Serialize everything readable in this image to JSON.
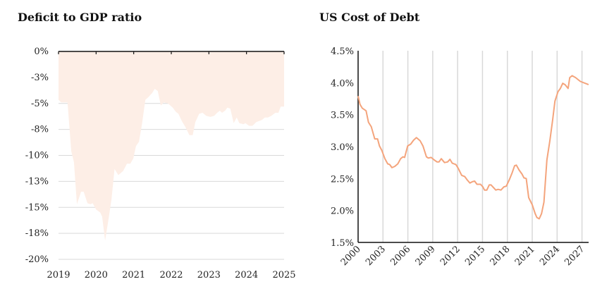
{
  "colors": {
    "area": "#fdeee6",
    "line": "#f4a47c",
    "grid": "#d9d9d9",
    "axis": "#111111"
  },
  "chart_data": [
    {
      "type": "area",
      "title": "Deficit to GDP ratio",
      "xlabel": "",
      "ylabel": "",
      "xlim": [
        2019,
        2025
      ],
      "ylim": [
        -20,
        0
      ],
      "grid": "horizontal",
      "x_ticks": [
        2019,
        2020,
        2021,
        2022,
        2023,
        2024,
        2025
      ],
      "x_tick_labels": [
        "2019",
        "2020",
        "2021",
        "2022",
        "2023",
        "2024",
        "2025"
      ],
      "y_ticks": [
        0,
        -2.5,
        -5,
        -7.5,
        -10,
        -12.5,
        -15,
        -17.5,
        -20
      ],
      "y_tick_labels": [
        "0%",
        "-3%",
        "-5%",
        "-8%",
        "-10%",
        "-13%",
        "-15%",
        "-18%",
        "-20%"
      ],
      "x": [
        2019.0,
        2019.07,
        2019.24,
        2019.34,
        2019.41,
        2019.49,
        2019.6,
        2019.67,
        2019.77,
        2019.85,
        2019.91,
        2020.0,
        2020.11,
        2020.16,
        2020.24,
        2020.34,
        2020.41,
        2020.49,
        2020.59,
        2020.72,
        2020.82,
        2020.91,
        2020.99,
        2021.06,
        2021.14,
        2021.22,
        2021.31,
        2021.39,
        2021.49,
        2021.56,
        2021.64,
        2021.72,
        2021.8,
        2021.91,
        2022.04,
        2022.12,
        2022.19,
        2022.28,
        2022.38,
        2022.48,
        2022.57,
        2022.64,
        2022.74,
        2022.83,
        2022.93,
        2023.04,
        2023.14,
        2023.22,
        2023.29,
        2023.35,
        2023.43,
        2023.49,
        2023.57,
        2023.66,
        2023.74,
        2023.81,
        2023.92,
        2023.97,
        2024.07,
        2024.16,
        2024.26,
        2024.41,
        2024.49,
        2024.57,
        2024.66,
        2024.77,
        2024.85,
        2024.91,
        2025.0
      ],
      "values": [
        -4.65,
        -4.9,
        -4.9,
        -9.6,
        -10.65,
        -14.7,
        -13.5,
        -13.5,
        -14.6,
        -14.7,
        -14.6,
        -15.2,
        -15.5,
        -15.9,
        -18.2,
        -15.9,
        -14.2,
        -11.3,
        -11.9,
        -11.5,
        -10.8,
        -10.8,
        -10.3,
        -9.1,
        -8.7,
        -7.0,
        -4.65,
        -4.4,
        -4.0,
        -3.6,
        -3.8,
        -5.2,
        -4.9,
        -5.0,
        -5.4,
        -5.8,
        -6.0,
        -6.7,
        -7.3,
        -8.05,
        -8.05,
        -6.8,
        -6.0,
        -5.9,
        -6.2,
        -6.3,
        -6.2,
        -5.9,
        -5.7,
        -5.9,
        -5.7,
        -5.4,
        -5.5,
        -6.9,
        -6.35,
        -6.9,
        -7.0,
        -6.9,
        -7.15,
        -7.15,
        -6.8,
        -6.6,
        -6.35,
        -6.35,
        -6.2,
        -5.9,
        -5.9,
        -5.3,
        -5.3
      ]
    },
    {
      "type": "line",
      "title": "US Cost of Debt",
      "xlabel": "",
      "ylabel": "",
      "xlim": [
        2000,
        2027.8
      ],
      "ylim": [
        1.5,
        4.5
      ],
      "grid": "vertical",
      "x_ticks": [
        2000,
        2003,
        2006,
        2009,
        2012,
        2015,
        2018,
        2021,
        2024,
        2027
      ],
      "x_tick_labels": [
        "2000",
        "2003",
        "2006",
        "2009",
        "2012",
        "2015",
        "2018",
        "2021",
        "2024",
        "2027"
      ],
      "y_ticks": [
        1.5,
        2.0,
        2.5,
        3.0,
        3.5,
        4.0,
        4.5
      ],
      "y_tick_labels": [
        "1.5%",
        "2.0%",
        "2.5%",
        "3.0%",
        "3.5%",
        "4.0%",
        "4.5%"
      ],
      "x": [
        2000.0,
        2000.23,
        2000.51,
        2000.96,
        2001.25,
        2001.59,
        2002.01,
        2002.35,
        2002.58,
        2002.86,
        2003.23,
        2003.57,
        2003.8,
        2004.08,
        2004.42,
        2004.79,
        2005.13,
        2005.41,
        2005.61,
        2005.98,
        2006.35,
        2006.69,
        2007.03,
        2007.48,
        2007.82,
        2008.24,
        2008.47,
        2008.81,
        2009.18,
        2009.52,
        2009.75,
        2010.03,
        2010.42,
        2010.79,
        2011.08,
        2011.36,
        2011.78,
        2012.07,
        2012.49,
        2012.86,
        2013.14,
        2013.48,
        2013.77,
        2014.05,
        2014.33,
        2014.76,
        2015.04,
        2015.24,
        2015.52,
        2015.81,
        2016.03,
        2016.6,
        2016.88,
        2017.22,
        2017.59,
        2017.87,
        2018.24,
        2018.58,
        2018.87,
        2019.09,
        2019.43,
        2019.77,
        2020.0,
        2020.28,
        2020.57,
        2021.0,
        2021.36,
        2021.56,
        2021.84,
        2022.12,
        2022.41,
        2022.77,
        2023.12,
        2023.46,
        2023.74,
        2024.11,
        2024.39,
        2024.68,
        2024.96,
        2025.33,
        2025.52,
        2025.81,
        2026.23,
        2026.8,
        2027.79
      ],
      "values": [
        3.79,
        3.66,
        3.6,
        3.56,
        3.38,
        3.31,
        3.12,
        3.12,
        3.01,
        2.94,
        2.81,
        2.73,
        2.72,
        2.67,
        2.69,
        2.73,
        2.81,
        2.84,
        2.83,
        3.01,
        3.04,
        3.1,
        3.14,
        3.09,
        3.01,
        2.84,
        2.82,
        2.83,
        2.79,
        2.76,
        2.76,
        2.81,
        2.75,
        2.76,
        2.8,
        2.74,
        2.72,
        2.66,
        2.55,
        2.53,
        2.48,
        2.43,
        2.45,
        2.46,
        2.41,
        2.41,
        2.37,
        2.32,
        2.32,
        2.4,
        2.4,
        2.32,
        2.33,
        2.32,
        2.37,
        2.38,
        2.48,
        2.59,
        2.7,
        2.71,
        2.63,
        2.57,
        2.51,
        2.5,
        2.2,
        2.09,
        1.95,
        1.89,
        1.87,
        1.95,
        2.13,
        2.79,
        3.09,
        3.42,
        3.71,
        3.86,
        3.91,
        3.99,
        3.97,
        3.91,
        4.08,
        4.11,
        4.08,
        4.02,
        3.97
      ]
    }
  ]
}
